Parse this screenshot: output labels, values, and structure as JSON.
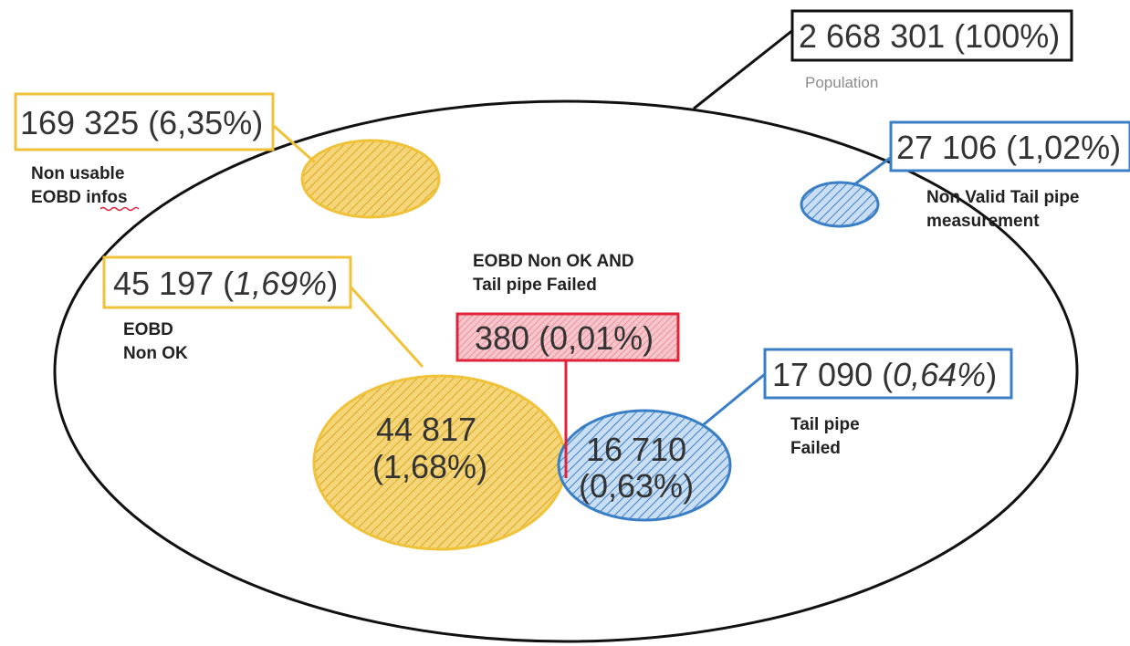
{
  "colors": {
    "yellow": "#f0c23a",
    "blue": "#3a7fc6",
    "red": "#e0233a",
    "black": "#111111"
  },
  "population": {
    "value": "2 668 301 (100%)",
    "label": "Population"
  },
  "non_usable_eobd": {
    "value": "169 325 (6,35%)",
    "label_line1": "Non usable",
    "label_line2_part1": "EOBD ",
    "label_line2_part2": "infos"
  },
  "non_valid_tailpipe": {
    "value": "27 106 (1,02%)",
    "label_line1": "Non Valid  Tail pipe",
    "label_line2": "measurement"
  },
  "eobd_non_ok": {
    "value_num": "45 197 (",
    "value_pct": "1,69%",
    "value_close": ")",
    "label_line1": "EOBD",
    "label_line2": "Non OK",
    "inner_line1": "44 817",
    "inner_line2": "(1,68%)"
  },
  "both_failed": {
    "title_line1": "EOBD Non OK  AND",
    "title_line2": "Tail pipe Failed",
    "value": "380 (0,01%)"
  },
  "tailpipe_failed": {
    "value_num": "17 090 (",
    "value_pct": "0,64%",
    "value_close": ")",
    "label_line1": "Tail pipe",
    "label_line2": "Failed",
    "inner_line1": "16 710",
    "inner_line2": "(0,63%)"
  }
}
